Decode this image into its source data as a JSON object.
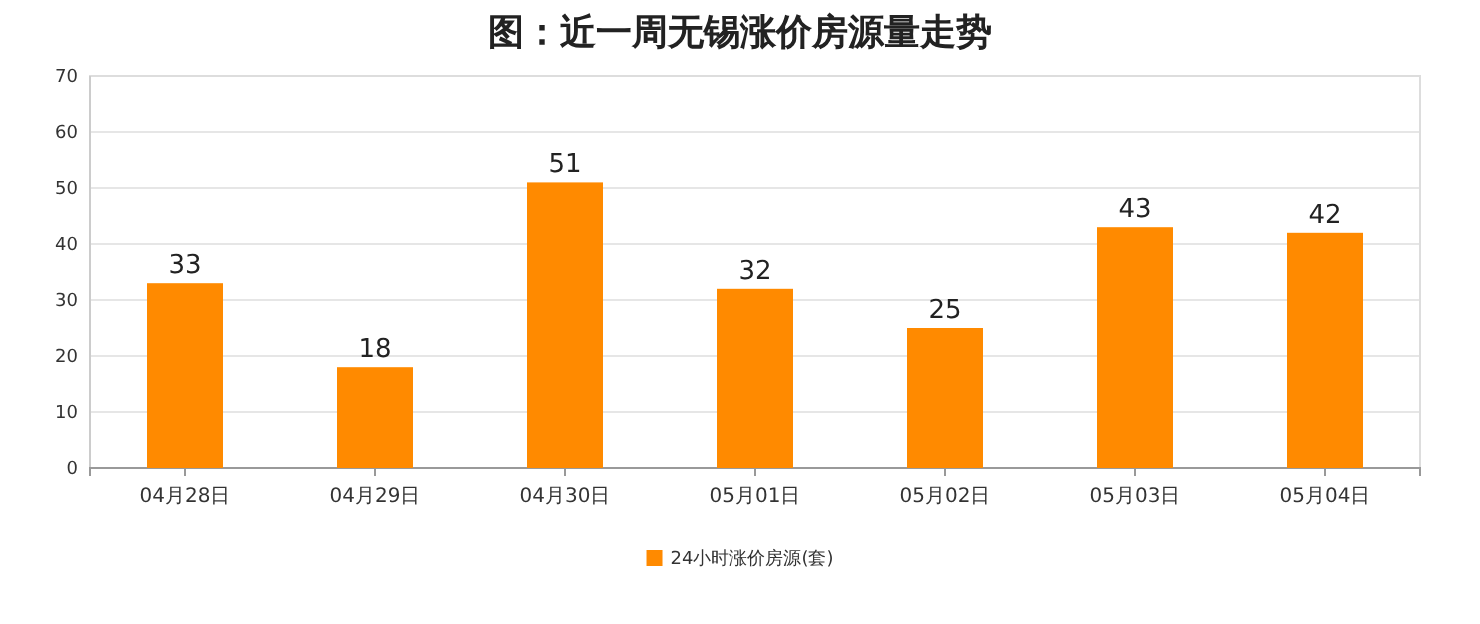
{
  "chart_data": {
    "type": "bar",
    "title": "图：近一周无锡涨价房源量走势",
    "categories": [
      "04月28日",
      "04月29日",
      "04月30日",
      "05月01日",
      "05月02日",
      "05月03日",
      "05月04日"
    ],
    "series": [
      {
        "name": "24小时涨价房源(套)",
        "color": "#ff8a00",
        "values": [
          33,
          18,
          51,
          32,
          25,
          43,
          42
        ]
      }
    ],
    "ylim": [
      0,
      70
    ],
    "yticks": [
      0,
      10,
      20,
      30,
      40,
      50,
      60,
      70
    ],
    "grid": "y",
    "legend": "bottom",
    "data_labels": true
  }
}
